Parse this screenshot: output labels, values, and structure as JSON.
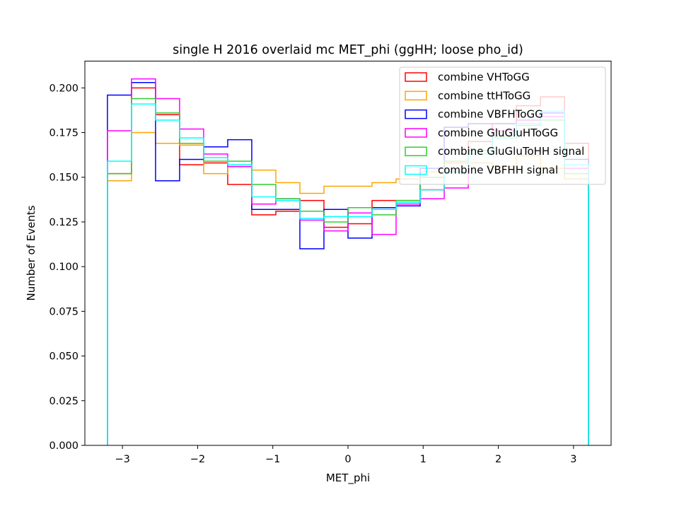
{
  "chart_data": {
    "type": "line",
    "title": "single H 2016 overlaid mc MET_phi (ggHH; loose pho_id)",
    "xlabel": "MET_phi",
    "ylabel": "Number of Events",
    "xlim": [
      -3.5,
      3.5
    ],
    "ylim": [
      0,
      0.215
    ],
    "xticks": [
      -3,
      -2,
      -1,
      0,
      1,
      2,
      3
    ],
    "xtick_labels": [
      "−3",
      "−2",
      "−1",
      "0",
      "1",
      "2",
      "3"
    ],
    "yticks": [
      0.0,
      0.025,
      0.05,
      0.075,
      0.1,
      0.125,
      0.15,
      0.175,
      0.2
    ],
    "ytick_labels": [
      "0.000",
      "0.025",
      "0.050",
      "0.075",
      "0.100",
      "0.125",
      "0.150",
      "0.175",
      "0.200"
    ],
    "legend_position": "top-right",
    "bin_edges": [
      -3.2,
      -2.88,
      -2.56,
      -2.24,
      -1.92,
      -1.6,
      -1.28,
      -0.96,
      -0.64,
      -0.32,
      0.0,
      0.32,
      0.64,
      0.96,
      1.28,
      1.6,
      1.92,
      2.24,
      2.56,
      2.88,
      3.2
    ],
    "series": [
      {
        "name": "combine VHToGG",
        "color": "#ff0000",
        "values": [
          0.152,
          0.2,
          0.185,
          0.157,
          0.158,
          0.146,
          0.129,
          0.131,
          0.137,
          0.122,
          0.124,
          0.137,
          0.137,
          0.143,
          0.158,
          0.17,
          0.18,
          0.19,
          0.195,
          0.169
        ]
      },
      {
        "name": "combine ttHToGG",
        "color": "#ffa500",
        "values": [
          0.148,
          0.175,
          0.169,
          0.168,
          0.152,
          0.156,
          0.154,
          0.147,
          0.141,
          0.145,
          0.145,
          0.147,
          0.149,
          0.153,
          0.158,
          0.158,
          0.156,
          0.162,
          0.155,
          0.149
        ]
      },
      {
        "name": "combine VBFHToGG",
        "color": "#0000ff",
        "values": [
          0.196,
          0.203,
          0.148,
          0.16,
          0.167,
          0.171,
          0.132,
          0.132,
          0.11,
          0.132,
          0.116,
          0.133,
          0.134,
          0.155,
          0.178,
          0.18,
          0.18,
          0.182,
          0.186,
          0.16
        ]
      },
      {
        "name": "combine GluGluHToGG",
        "color": "#ff00ff",
        "values": [
          0.176,
          0.205,
          0.194,
          0.177,
          0.163,
          0.156,
          0.135,
          0.138,
          0.126,
          0.12,
          0.13,
          0.118,
          0.135,
          0.138,
          0.144,
          0.165,
          0.176,
          0.182,
          0.184,
          0.155
        ]
      },
      {
        "name": "combine GluGluToHH signal",
        "color": "#32cd32",
        "values": [
          0.152,
          0.194,
          0.186,
          0.169,
          0.159,
          0.159,
          0.146,
          0.138,
          0.131,
          0.125,
          0.133,
          0.129,
          0.137,
          0.15,
          0.159,
          0.165,
          0.173,
          0.179,
          0.182,
          0.152
        ]
      },
      {
        "name": "combine VBFHH signal",
        "color": "#00ffff",
        "values": [
          0.159,
          0.191,
          0.182,
          0.172,
          0.161,
          0.157,
          0.139,
          0.137,
          0.127,
          0.128,
          0.128,
          0.132,
          0.136,
          0.143,
          0.153,
          0.163,
          0.172,
          0.18,
          0.187,
          0.157
        ]
      }
    ]
  }
}
